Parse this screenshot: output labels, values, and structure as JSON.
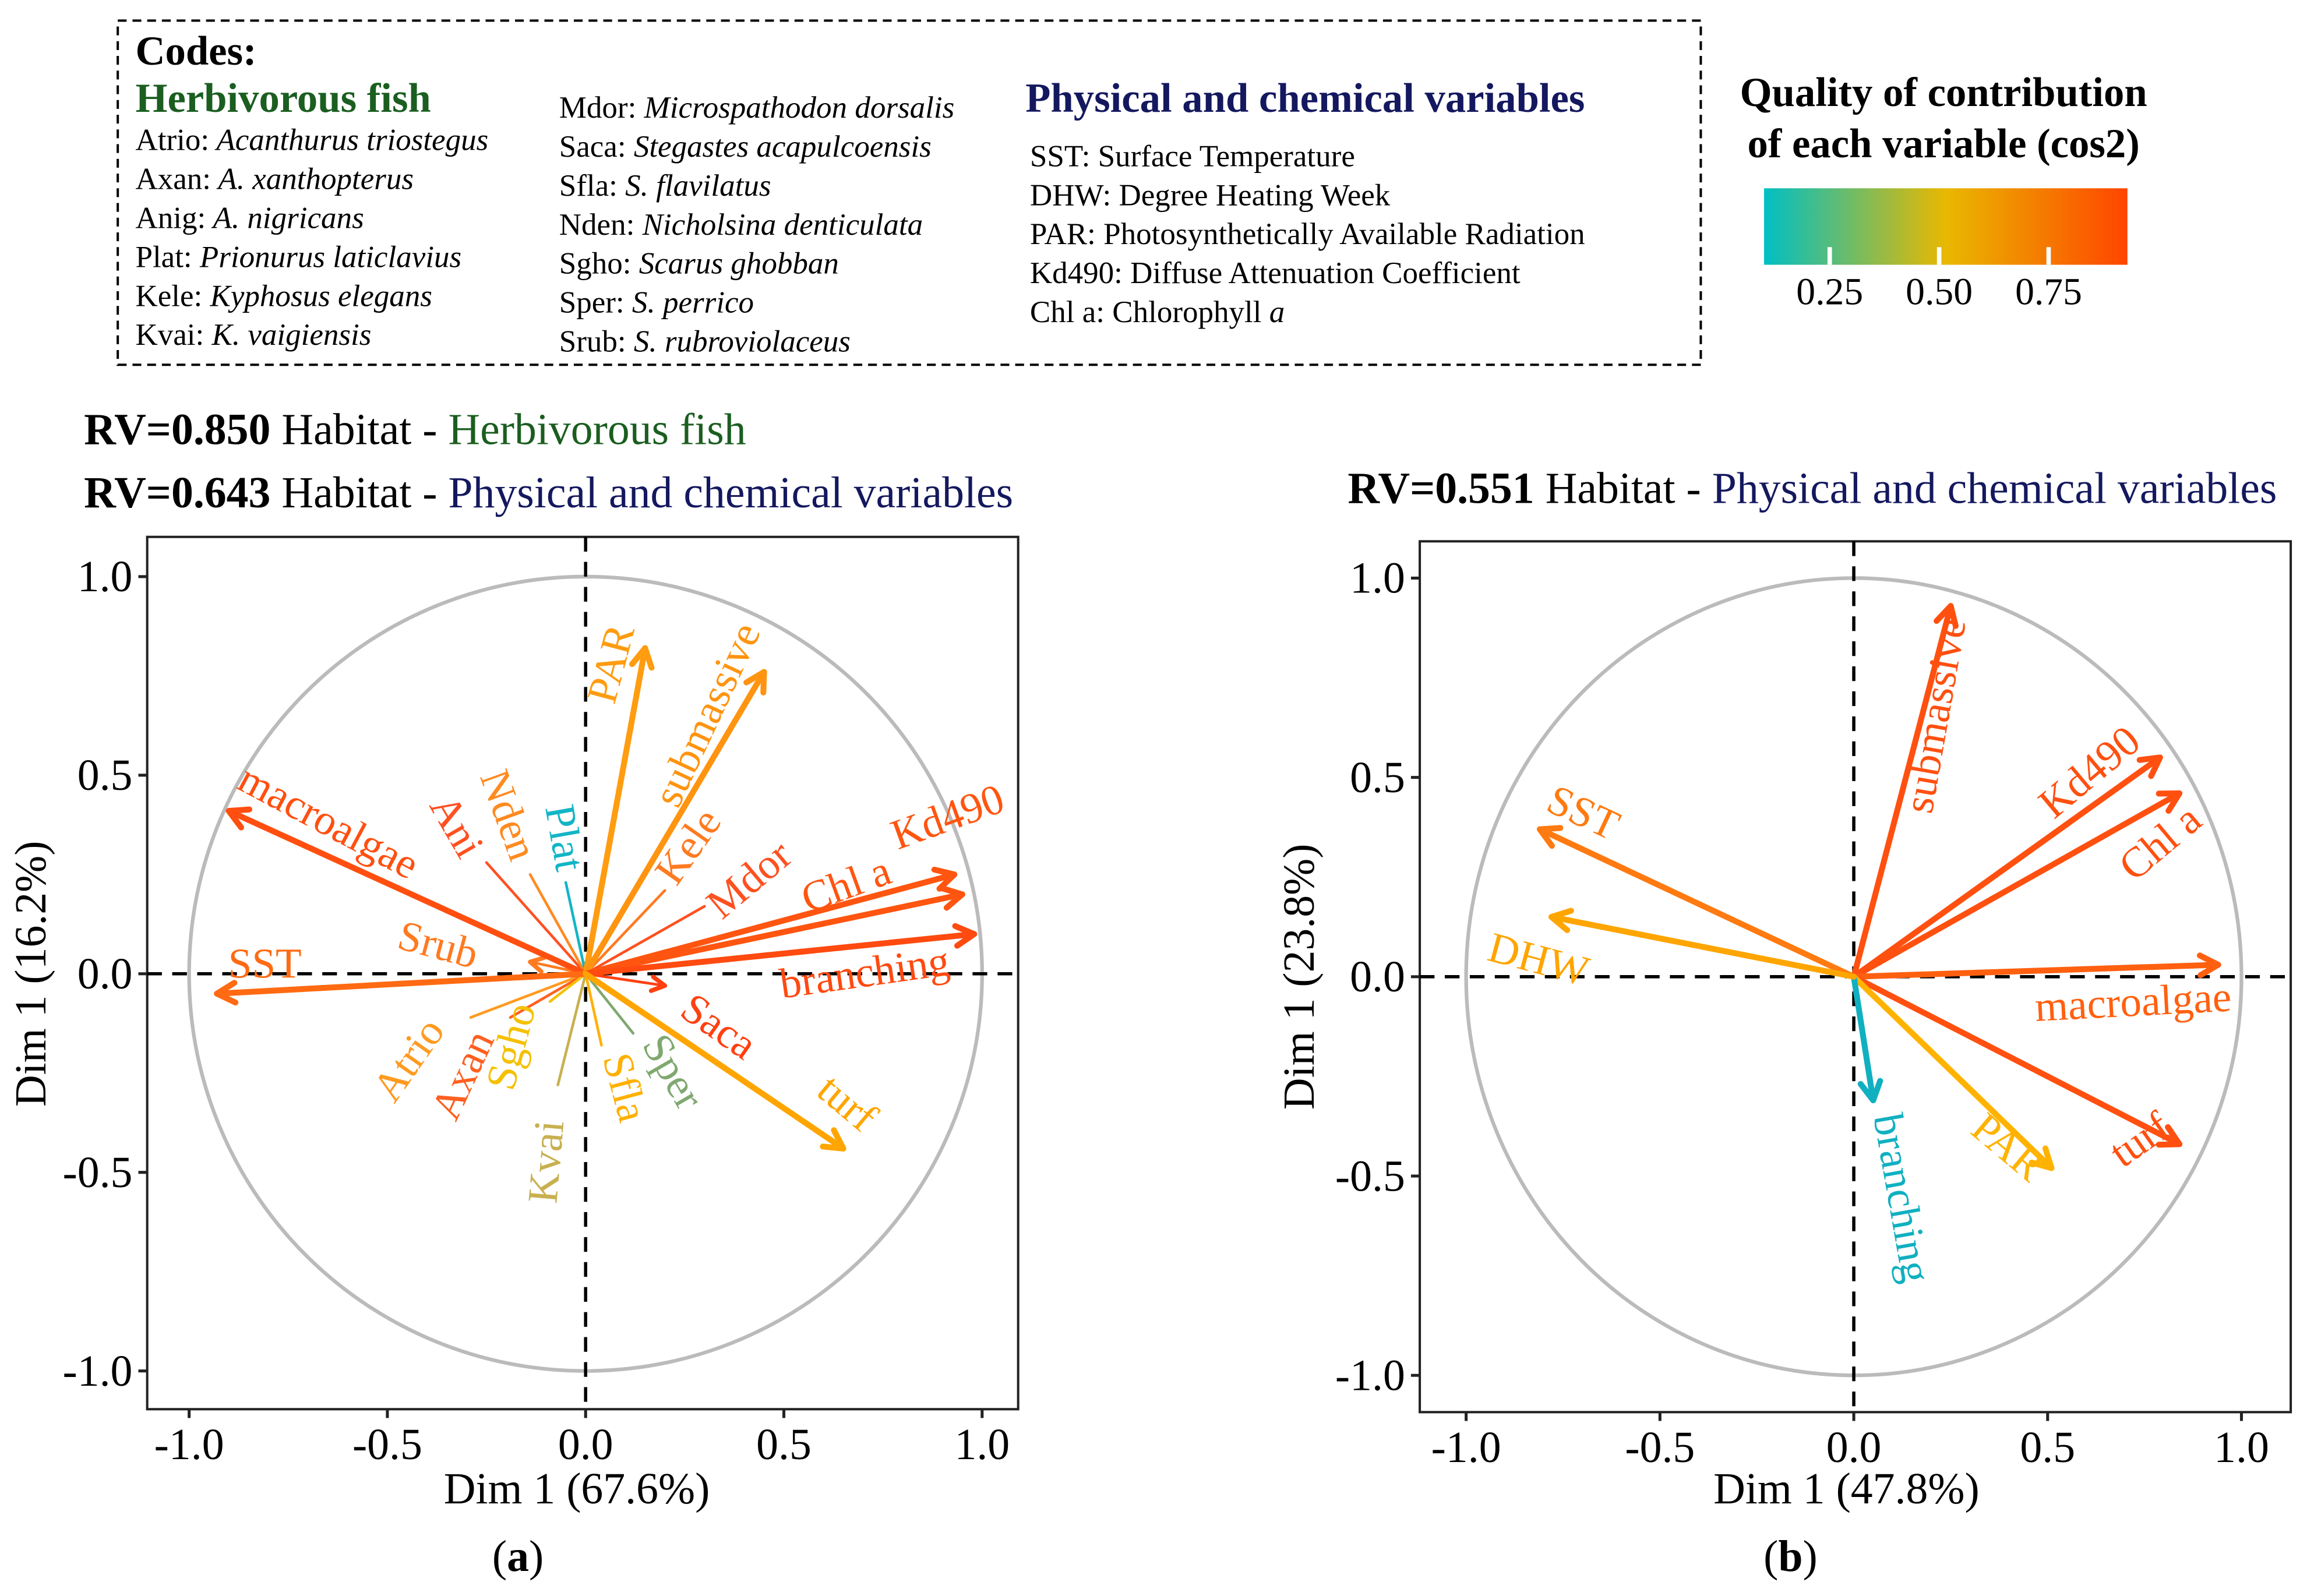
{
  "legend": {
    "codes_title": "Codes:",
    "fish_header": "Herbivorous fish",
    "fish_col1": [
      {
        "code": "Atrio:",
        "name": "Acanthurus triostegus"
      },
      {
        "code": "Axan:",
        "name": "A. xanthopterus"
      },
      {
        "code": "Anig:",
        "name": "A. nigricans"
      },
      {
        "code": "Plat:",
        "name": "Prionurus laticlavius"
      },
      {
        "code": "Kele:",
        "name": "Kyphosus elegans"
      },
      {
        "code": "Kvai:",
        "name": "K. vaigiensis"
      }
    ],
    "fish_col2": [
      {
        "code": "Mdor:",
        "name": "Microspathodon dorsalis"
      },
      {
        "code": "Saca:",
        "name": "Stegastes acapulcoensis"
      },
      {
        "code": "Sfla:",
        "name": "S. flavilatus"
      },
      {
        "code": "Nden:",
        "name": "Nicholsina denticulata"
      },
      {
        "code": "Sgho:",
        "name": "Scarus ghobban"
      },
      {
        "code": "Sper:",
        "name": "S. perrico"
      },
      {
        "code": "Srub:",
        "name": "S. rubroviolaceus"
      }
    ],
    "physchem_header": "Physical and chemical variables",
    "physchem": [
      {
        "code": "SST:",
        "name": "Surface Temperature",
        "italic": ""
      },
      {
        "code": "DHW:",
        "name": "Degree Heating Week",
        "italic": ""
      },
      {
        "code": "PAR:",
        "name": "Photosynthetically Available Radiation",
        "italic": ""
      },
      {
        "code": "Kd490:",
        "name": "Diffuse Attenuation Coefficient",
        "italic": ""
      },
      {
        "code": "Chl a:",
        "name": "Chlorophyll ",
        "italic": "a"
      }
    ],
    "colorbar": {
      "title_line1": "Quality of contribution",
      "title_line2": "of each variable (cos2)",
      "range": [
        0.1,
        0.93
      ],
      "ticks": [
        0.25,
        0.5,
        0.75
      ],
      "tick_labels": [
        "0.25",
        "0.50",
        "0.75"
      ],
      "colors": [
        "#00BFC4",
        "#E9B800",
        "#FF4500"
      ]
    }
  },
  "colors": {
    "fish_green": "#1B5E20",
    "physchem_navy": "#14185E",
    "circle": "#BBBBBB"
  },
  "chart_data": [
    {
      "type": "scatter",
      "panel_label": "a",
      "titles": [
        {
          "rv": "RV=0.850",
          "mid": " Habitat - ",
          "group": "Herbivorous fish",
          "group_color": "#1B5E20"
        },
        {
          "rv": "RV=0.643",
          "mid": " Habitat - ",
          "group": "Physical and chemical variables",
          "group_color": "#14185E"
        }
      ],
      "xlabel": "Dim 1 (67.6%)",
      "ylabel": "Dim 1 (16.2%)",
      "xlim": [
        -1.1,
        1.1
      ],
      "ylim": [
        -1.1,
        1.1
      ],
      "xticks": [
        "-1.0",
        "-0.5",
        "0.0",
        "0.5",
        "1.0"
      ],
      "yticks": [
        "1.0",
        "0.5",
        "0.0",
        "-0.5",
        "-1.0"
      ],
      "vectors": [
        {
          "name": "macroalgae",
          "kind": "habitat",
          "x": -0.9,
          "y": 0.41,
          "color": "#FF4F10"
        },
        {
          "name": "SST",
          "kind": "physchem",
          "x": -0.93,
          "y": -0.05,
          "color": "#FF6A12"
        },
        {
          "name": "PAR",
          "kind": "physchem",
          "x": 0.15,
          "y": 0.82,
          "color": "#FF9C10"
        },
        {
          "name": "submassive",
          "kind": "habitat",
          "x": 0.45,
          "y": 0.76,
          "color": "#FF9410"
        },
        {
          "name": "Chl a",
          "kind": "physchem",
          "x": 0.93,
          "y": 0.25,
          "color": "#FF5510"
        },
        {
          "name": "Kd490",
          "kind": "physchem",
          "x": 0.95,
          "y": 0.2,
          "color": "#FF5510"
        },
        {
          "name": "branching",
          "kind": "habitat",
          "x": 0.98,
          "y": 0.1,
          "color": "#FF4A10"
        },
        {
          "name": "turf",
          "kind": "habitat",
          "x": 0.65,
          "y": -0.44,
          "color": "#FFA500"
        },
        {
          "name": "Saca",
          "kind": "fish",
          "x": 0.2,
          "y": -0.03,
          "color": "#FF4010"
        },
        {
          "name": "Srub",
          "kind": "fish",
          "x": -0.14,
          "y": 0.03,
          "color": "#FF7A20"
        },
        {
          "name": "Ani",
          "kind": "fish",
          "x": -0.25,
          "y": 0.28,
          "color": "#FF5020"
        },
        {
          "name": "Nden",
          "kind": "fish",
          "x": -0.14,
          "y": 0.25,
          "color": "#FF8A20"
        },
        {
          "name": "Plat",
          "kind": "fish",
          "x": -0.05,
          "y": 0.23,
          "color": "#12B5C6"
        },
        {
          "name": "Kele",
          "kind": "fish",
          "x": 0.2,
          "y": 0.21,
          "color": "#FF7A20"
        },
        {
          "name": "Mdor",
          "kind": "fish",
          "x": 0.3,
          "y": 0.17,
          "color": "#FF5020"
        },
        {
          "name": "Atrio",
          "kind": "fish",
          "x": -0.29,
          "y": -0.11,
          "color": "#FF9A20"
        },
        {
          "name": "Axan",
          "kind": "fish",
          "x": -0.19,
          "y": -0.11,
          "color": "#FF6020"
        },
        {
          "name": "Sgho",
          "kind": "fish",
          "x": -0.09,
          "y": -0.07,
          "color": "#F5C000"
        },
        {
          "name": "Kvai",
          "kind": "fish",
          "x": -0.07,
          "y": -0.28,
          "color": "#C8B050"
        },
        {
          "name": "Sfla",
          "kind": "fish",
          "x": 0.04,
          "y": -0.18,
          "color": "#FFB000"
        },
        {
          "name": "Sper",
          "kind": "fish",
          "x": 0.12,
          "y": -0.15,
          "color": "#80A870"
        }
      ]
    },
    {
      "type": "scatter",
      "panel_label": "b",
      "titles": [
        {
          "rv": "RV=0.551",
          "mid": " Habitat - ",
          "group": "Physical and  chemical variables",
          "group_color": "#14185E"
        }
      ],
      "xlabel": "Dim 1 (47.8%)",
      "ylabel": "Dim 1 (23.8%)",
      "xlim": [
        -1.1,
        1.1
      ],
      "ylim": [
        -1.1,
        1.1
      ],
      "xticks": [
        "-1.0",
        "-0.5",
        "0.0",
        "0.5",
        "1.0"
      ],
      "yticks": [
        "1.0",
        "0.5",
        "0.0",
        "-0.5",
        "-1.0"
      ],
      "vectors": [
        {
          "name": "submassive",
          "kind": "habitat",
          "x": 0.25,
          "y": 0.93,
          "color": "#FF5010"
        },
        {
          "name": "Kd490",
          "kind": "physchem",
          "x": 0.79,
          "y": 0.55,
          "color": "#FF5010"
        },
        {
          "name": "Chl a",
          "kind": "physchem",
          "x": 0.84,
          "y": 0.46,
          "color": "#FF5010"
        },
        {
          "name": "macroalgae",
          "kind": "habitat",
          "x": 0.94,
          "y": 0.03,
          "color": "#FF6010"
        },
        {
          "name": "turf",
          "kind": "habitat",
          "x": 0.84,
          "y": -0.42,
          "color": "#FF5010"
        },
        {
          "name": "PAR",
          "kind": "physchem",
          "x": 0.51,
          "y": -0.48,
          "color": "#FFB300"
        },
        {
          "name": "branching",
          "kind": "habitat",
          "x": 0.05,
          "y": -0.31,
          "color": "#10B0C0"
        },
        {
          "name": "SST",
          "kind": "physchem",
          "x": -0.81,
          "y": 0.37,
          "color": "#FF7A10"
        },
        {
          "name": "DHW",
          "kind": "physchem",
          "x": -0.78,
          "y": 0.15,
          "color": "#FFA500"
        }
      ]
    }
  ]
}
